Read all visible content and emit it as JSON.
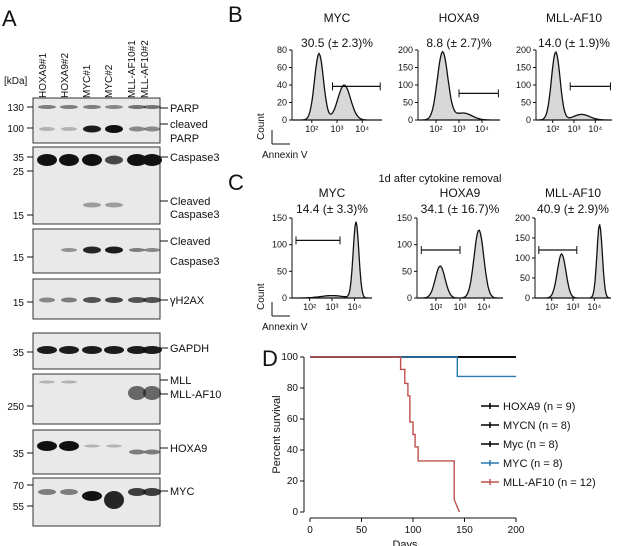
{
  "panels": {
    "A": "A",
    "B": "B",
    "C": "C",
    "D": "D"
  },
  "blot": {
    "kda_label": "[kDa]",
    "lanes": [
      "HOXA9#1",
      "HOXA9#2",
      "MYC#1",
      "MYC#2",
      "MLL-AF10#1",
      "MLL-AF10#2"
    ],
    "rows": [
      {
        "markers": [
          "130",
          "100"
        ],
        "labels": [
          "PARP",
          "cleaved",
          "PARP"
        ]
      },
      {
        "markers": [
          "35",
          "25",
          "15"
        ],
        "labels": [
          "Caspase3",
          "Cleaved",
          "Caspase3"
        ]
      },
      {
        "markers": [
          "15"
        ],
        "labels": [
          "Cleaved",
          "Caspase3"
        ]
      },
      {
        "markers": [
          "15"
        ],
        "labels": [
          "γH2AX"
        ]
      },
      {
        "markers": [
          "35"
        ],
        "labels": [
          "GAPDH"
        ]
      },
      {
        "markers": [
          "250"
        ],
        "labels": [
          "MLL",
          "MLL-AF10"
        ]
      },
      {
        "markers": [
          "35"
        ],
        "labels": [
          "HOXA9"
        ]
      },
      {
        "markers": [
          "70",
          "55"
        ],
        "labels": [
          "MYC"
        ]
      }
    ]
  },
  "flowB": {
    "histograms": [
      {
        "title": "MYC",
        "pct": "30.5 (± 2.3)%",
        "yticks": [
          "0",
          "20",
          "40",
          "60",
          "80"
        ]
      },
      {
        "title": "HOXA9",
        "pct": "8.8 (± 2.7)%",
        "yticks": [
          "0",
          "50",
          "100",
          "150",
          "200"
        ]
      },
      {
        "title": "MLL-AF10",
        "pct": "14.0 (± 1.9)%",
        "yticks": [
          "0",
          "50",
          "100",
          "150",
          "200"
        ]
      }
    ],
    "ylabel": "Count",
    "xlabel": "Annexin V",
    "xticks": [
      "10²",
      "10³",
      "10⁴"
    ]
  },
  "flowC": {
    "header": "1d after cytokine removal",
    "histograms": [
      {
        "title": "MYC",
        "pct": "14.4 (± 3.3)%",
        "yticks": [
          "0",
          "50",
          "100",
          "150"
        ]
      },
      {
        "title": "HOXA9",
        "pct": "34.1 (± 16.7)%",
        "yticks": [
          "0",
          "50",
          "100",
          "150"
        ]
      },
      {
        "title": "MLL-AF10",
        "pct": "40.9 (± 2.9)%",
        "yticks": [
          "0",
          "50",
          "100",
          "150",
          "200"
        ]
      }
    ],
    "ylabel": "Count",
    "xlabel": "Annexin V",
    "xticks": [
      "10²",
      "10³",
      "10⁴"
    ]
  },
  "chart_data": {
    "type": "line",
    "xlabel": "Days",
    "ylabel": "Percent survival",
    "xlim": [
      0,
      200
    ],
    "ylim": [
      0,
      100
    ],
    "xticks": [
      0,
      50,
      100,
      150,
      200
    ],
    "yticks": [
      0,
      20,
      40,
      60,
      80,
      100
    ],
    "series": [
      {
        "name": "HOXA9 (n = 9)",
        "color": "#000000",
        "x": [
          0,
          200
        ],
        "y": [
          100,
          100
        ]
      },
      {
        "name": "MYCN (n = 8)",
        "color": "#000000",
        "x": [
          0,
          200
        ],
        "y": [
          100,
          100
        ]
      },
      {
        "name": "Myc (n = 8)",
        "color": "#000000",
        "x": [
          0,
          200
        ],
        "y": [
          100,
          100
        ]
      },
      {
        "name": "MYC (n = 8)",
        "color": "#2a7ab0",
        "x": [
          0,
          143,
          143,
          200
        ],
        "y": [
          100,
          100,
          87.5,
          87.5
        ]
      },
      {
        "name": "MLL-AF10 (n = 12)",
        "color": "#c0504d",
        "x": [
          0,
          88,
          88,
          92,
          92,
          95,
          95,
          97,
          97,
          100,
          100,
          102,
          102,
          105,
          105,
          140,
          140,
          145
        ],
        "y": [
          100,
          100,
          92,
          92,
          83,
          83,
          75,
          75,
          58,
          58,
          50,
          50,
          42,
          42,
          33,
          33,
          8,
          0
        ]
      }
    ]
  }
}
